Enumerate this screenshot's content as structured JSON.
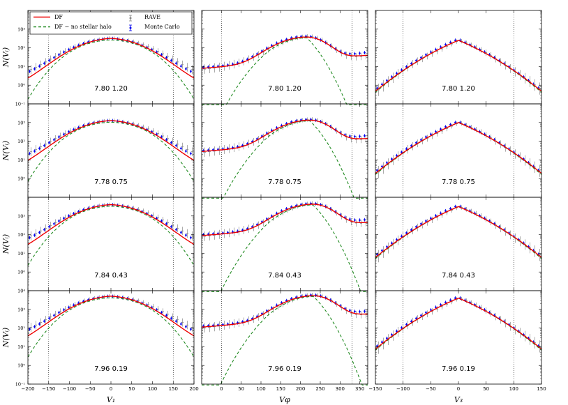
{
  "chart_data": {
    "type": "line",
    "title": "",
    "grid": false,
    "y_scale": "log",
    "ylim_log10": [
      -1,
      4
    ],
    "ylabel": "N(Vᵢ)",
    "legend": {
      "position": "top-left",
      "entries": [
        {
          "label": "DF",
          "style": "solid",
          "color": "#ee0000"
        },
        {
          "label": "DF − no stellar halo",
          "style": "dashed",
          "color": "#228b22"
        },
        {
          "label": "RAVE",
          "style": "errorbar",
          "color": "#888888"
        },
        {
          "label": "Monte Carlo",
          "style": "errorbar",
          "color": "#0000ee"
        }
      ]
    },
    "columns": [
      {
        "xlabel": "V₁",
        "xlim": [
          -200,
          200
        ],
        "xticks": [
          -200,
          -150,
          -100,
          -50,
          0,
          50,
          100,
          150,
          200
        ],
        "vlines": [
          -150,
          150
        ]
      },
      {
        "xlabel": "Vφ",
        "xlim": [
          -50,
          370
        ],
        "xticks": [
          0,
          50,
          100,
          150,
          200,
          250,
          300,
          350
        ],
        "vlines": [
          0,
          330
        ]
      },
      {
        "xlabel": "V₃",
        "xlim": [
          -150,
          150
        ],
        "xticks": [
          -150,
          -100,
          -50,
          0,
          50,
          100,
          150
        ],
        "vlines": [
          -100,
          100
        ]
      }
    ],
    "yticks": [
      "10⁻¹",
      "10⁰",
      "10¹",
      "10²",
      "10³",
      "10⁴"
    ],
    "rows": [
      {
        "label": "7.80 1.20",
        "peaks_log10": [
          2.4,
          2.55,
          2.4
        ]
      },
      {
        "label": "7.78 0.75",
        "peaks_log10": [
          3.0,
          3.1,
          3.0
        ]
      },
      {
        "label": "7.84 0.43",
        "peaks_log10": [
          3.5,
          3.6,
          3.5
        ]
      },
      {
        "label": "7.96 0.19",
        "peaks_log10": [
          3.6,
          3.7,
          3.6
        ]
      }
    ]
  }
}
